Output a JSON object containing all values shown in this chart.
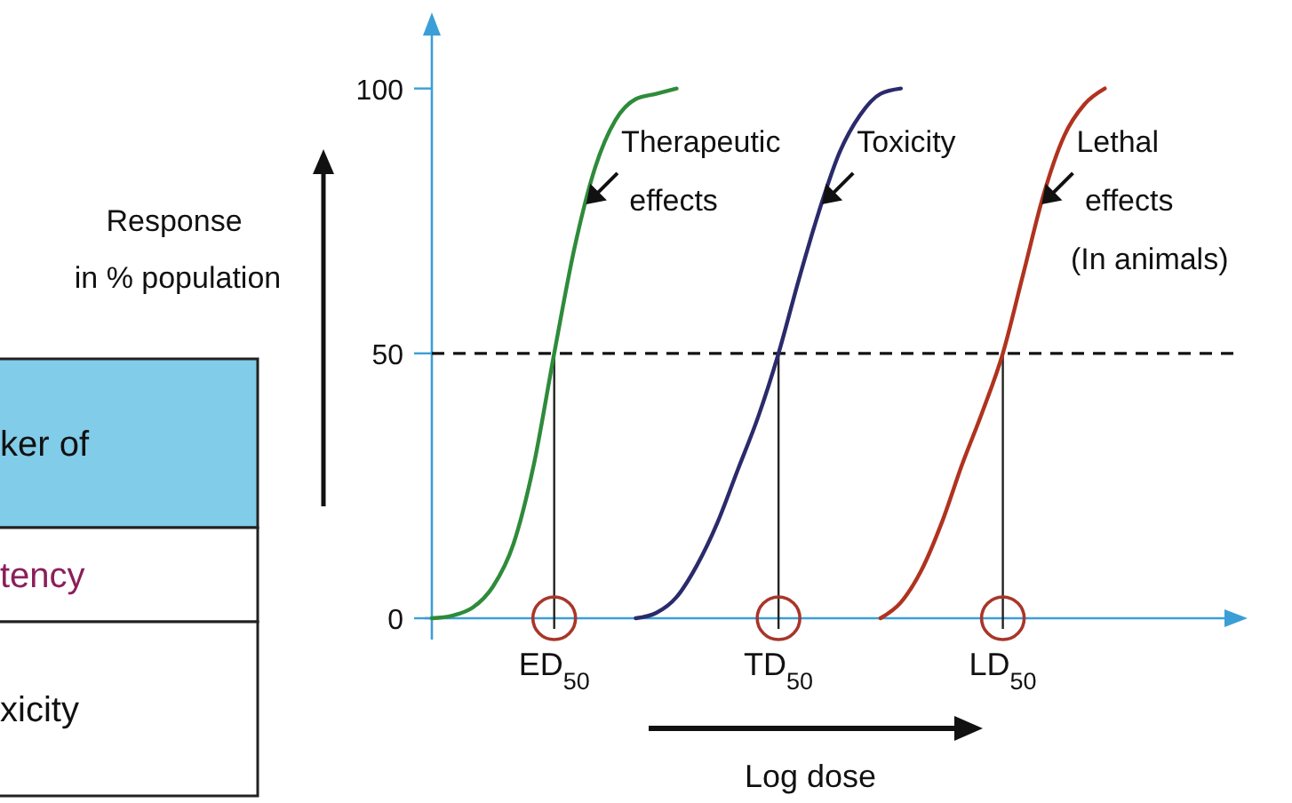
{
  "chart_data": {
    "type": "line",
    "xlabel": "Log dose",
    "ylabel": "Response in % population",
    "ylim": [
      0,
      110
    ],
    "yticks": [
      0,
      50,
      100
    ],
    "categories": [
      null,
      null,
      null,
      null,
      null,
      null,
      "ED$_{50}$",
      null,
      null,
      null,
      null,
      null,
      null,
      null,
      null,
      null,
      null,
      "TD$_{50}$",
      null,
      null,
      null,
      null,
      null,
      null,
      null,
      null,
      null,
      null,
      "LD$_{50}$",
      null,
      null,
      null,
      null,
      null,
      null,
      null,
      null,
      null,
      null,
      null
    ],
    "series": [
      {
        "name": "Therapeutic effects",
        "color": "#2e8b3a",
        "values": [
          0,
          0.5,
          2,
          6,
          14,
          29,
          50,
          70,
          85,
          94,
          98,
          99,
          100,
          null,
          null,
          null,
          null,
          null,
          null,
          null,
          null,
          null,
          null,
          null,
          null,
          null,
          null,
          null,
          null,
          null,
          null,
          null,
          null,
          null,
          null,
          null,
          null,
          null,
          null,
          null
        ]
      },
      {
        "name": "Toxicity",
        "color": "#2b2a6b",
        "values": [
          null,
          null,
          null,
          null,
          null,
          null,
          null,
          null,
          null,
          null,
          0,
          1,
          4,
          10,
          18,
          28,
          38,
          50,
          64,
          77,
          88,
          95,
          99,
          100,
          null,
          null,
          null,
          null,
          null,
          null,
          null,
          null,
          null,
          null,
          null,
          null,
          null,
          null,
          null,
          null
        ]
      },
      {
        "name": "Lethal effects (In animals)",
        "color": "#b0331f",
        "values": [
          null,
          null,
          null,
          null,
          null,
          null,
          null,
          null,
          null,
          null,
          null,
          null,
          null,
          null,
          null,
          null,
          null,
          null,
          null,
          null,
          null,
          null,
          0,
          3,
          9,
          18,
          29,
          39,
          50,
          65,
          80,
          91,
          97,
          100,
          null,
          null,
          null,
          null,
          null,
          null
        ]
      }
    ],
    "ref_lines": [
      {
        "axis": "y",
        "value": 50,
        "line_style": "dashed",
        "color": "#111111"
      }
    ],
    "annotations": [
      "ker of",
      "tency",
      "xicity"
    ],
    "legend": false,
    "marker": "none",
    "line_style": "solid"
  }
}
